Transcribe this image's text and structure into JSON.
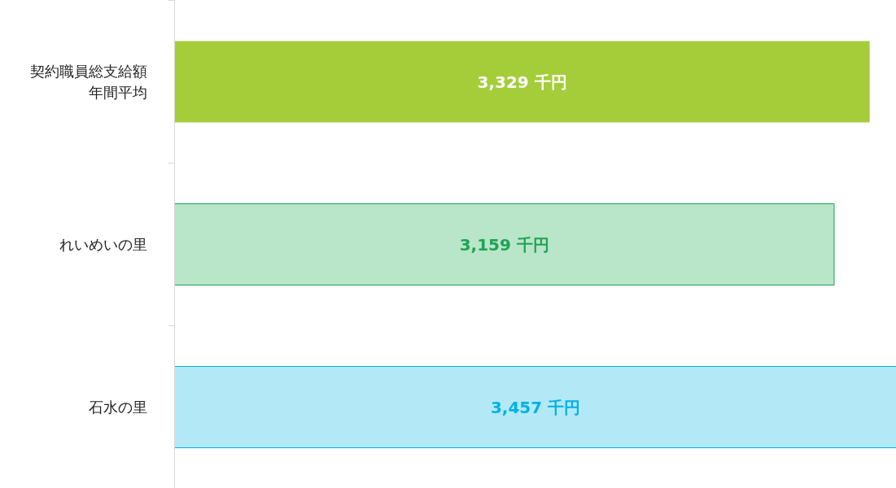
{
  "chart_data": {
    "type": "bar",
    "orientation": "horizontal",
    "categories": [
      "契約職員総支給額年間平均",
      "れいめいの里",
      "石水の里"
    ],
    "values": [
      3329,
      3159,
      3457
    ],
    "colors": [
      "#a5cd39",
      "#b9e5c9",
      "#b3e9f7"
    ],
    "value_labels": [
      "3,329 千円",
      "3,159 千円",
      "3,457 千円"
    ],
    "grid": false
  }
}
